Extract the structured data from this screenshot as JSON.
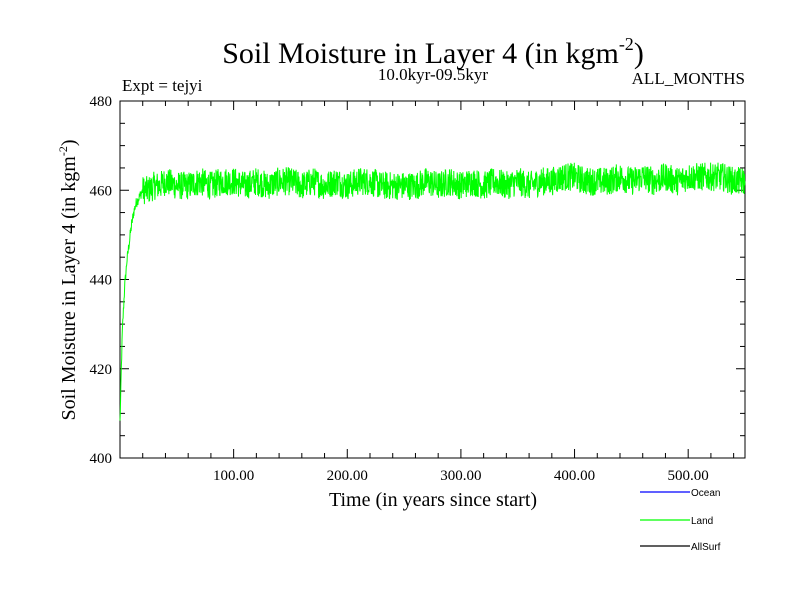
{
  "chart_data": {
    "type": "line",
    "title": "Soil Moisture in Layer 4 (in kgm",
    "title_superscript": "-2",
    "title_suffix": ")",
    "subtitle_left": "Expt = tejyi",
    "subtitle_center": "10.0kyr-09.5kyr",
    "subtitle_right": "ALL_MONTHS",
    "xlabel": "Time (in years since start)",
    "ylabel": "Soil Moisture in Layer 4 (in kgm",
    "ylabel_superscript": "-2",
    "ylabel_suffix": ")",
    "xlim": [
      0,
      550
    ],
    "ylim": [
      400,
      480
    ],
    "x_ticks": [
      100,
      200,
      300,
      400,
      500
    ],
    "x_tick_labels": [
      "100.00",
      "200.00",
      "300.00",
      "400.00",
      "500.00"
    ],
    "y_ticks": [
      400,
      420,
      440,
      460,
      480
    ],
    "y_tick_labels": [
      "400",
      "420",
      "440",
      "460",
      "480"
    ],
    "grid": false,
    "legend_placement": "bottom-right",
    "series": [
      {
        "name": "Ocean",
        "color": "#0000ff",
        "x": [],
        "y": []
      },
      {
        "name": "Land",
        "color": "#00ff00",
        "x": [
          0,
          2,
          4,
          6,
          8,
          10,
          12,
          14,
          16,
          18,
          20,
          25,
          30,
          35,
          40,
          50,
          60,
          70,
          80,
          90,
          100,
          110,
          120,
          130,
          140,
          150,
          160,
          170,
          180,
          190,
          200,
          210,
          220,
          230,
          240,
          250,
          260,
          270,
          280,
          290,
          300,
          310,
          320,
          330,
          340,
          350,
          360,
          370,
          380,
          390,
          400,
          410,
          420,
          430,
          440,
          450,
          460,
          470,
          480,
          490,
          500,
          510,
          520,
          530,
          540,
          550
        ],
        "y": [
          408,
          428,
          438,
          444,
          448,
          452,
          455,
          457,
          458,
          459,
          460,
          460,
          461,
          461,
          462,
          461,
          461,
          462,
          461,
          462,
          462,
          461,
          462,
          461,
          462,
          462,
          461,
          462,
          461,
          462,
          461,
          462,
          462,
          461,
          461,
          461,
          461,
          462,
          461,
          462,
          461,
          462,
          461,
          462,
          461,
          462,
          461,
          462,
          462,
          463,
          463,
          462,
          462,
          462,
          463,
          462,
          463,
          462,
          463,
          462,
          463,
          463,
          463,
          463,
          462,
          462
        ]
      },
      {
        "name": "AllSurf",
        "color": "#000000",
        "x": [],
        "y": []
      }
    ]
  }
}
